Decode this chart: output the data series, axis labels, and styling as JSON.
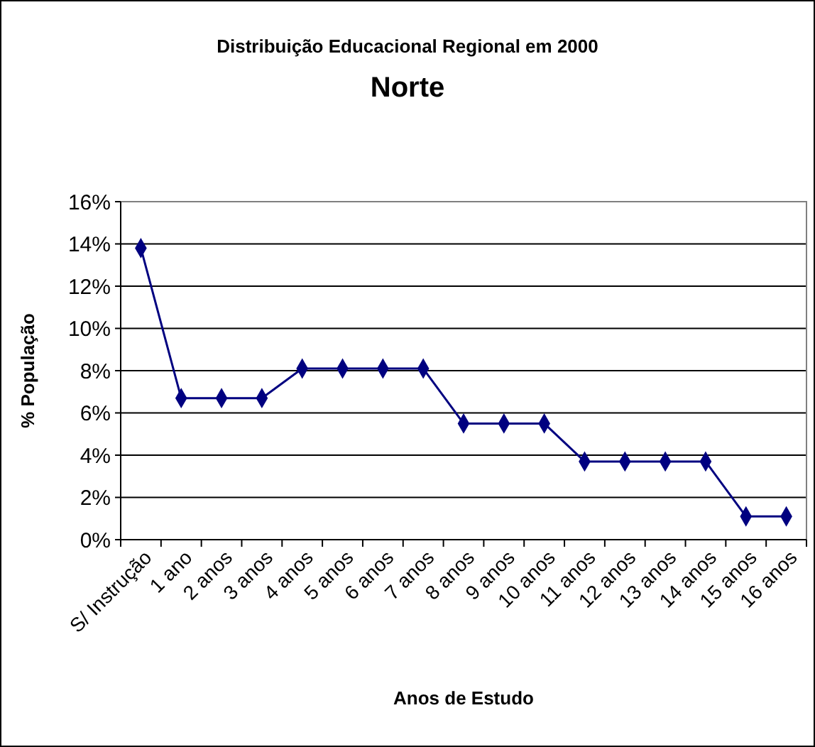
{
  "chart_data": {
    "type": "line",
    "title": "Distribuição Educacional Regional em 2000",
    "subtitle": "Norte",
    "xlabel": "Anos de Estudo",
    "ylabel": "% População",
    "categories": [
      "S/ Instrução",
      "1 ano",
      "2 anos",
      "3 anos",
      "4 anos",
      "5 anos",
      "6 anos",
      "7 anos",
      "8 anos",
      "9 anos",
      "10 anos",
      "11 anos",
      "12 anos",
      "13 anos",
      "14 anos",
      "15 anos",
      "16 anos"
    ],
    "series": [
      {
        "color": "#000080",
        "values": [
          13.8,
          6.7,
          6.7,
          6.7,
          8.1,
          8.1,
          8.1,
          8.1,
          5.5,
          5.5,
          5.5,
          3.7,
          3.7,
          3.7,
          3.7,
          1.1,
          1.1
        ]
      }
    ],
    "ylim": [
      0,
      16
    ],
    "yticks": [
      {
        "value": 0,
        "label": "0%"
      },
      {
        "value": 2,
        "label": "2%"
      },
      {
        "value": 4,
        "label": "4%"
      },
      {
        "value": 6,
        "label": "6%"
      },
      {
        "value": 8,
        "label": "8%"
      },
      {
        "value": 10,
        "label": "10%"
      },
      {
        "value": 12,
        "label": "12%"
      },
      {
        "value": 14,
        "label": "14%"
      },
      {
        "value": 16,
        "label": "16%"
      }
    ],
    "grid": "y",
    "marker": "diamond"
  }
}
